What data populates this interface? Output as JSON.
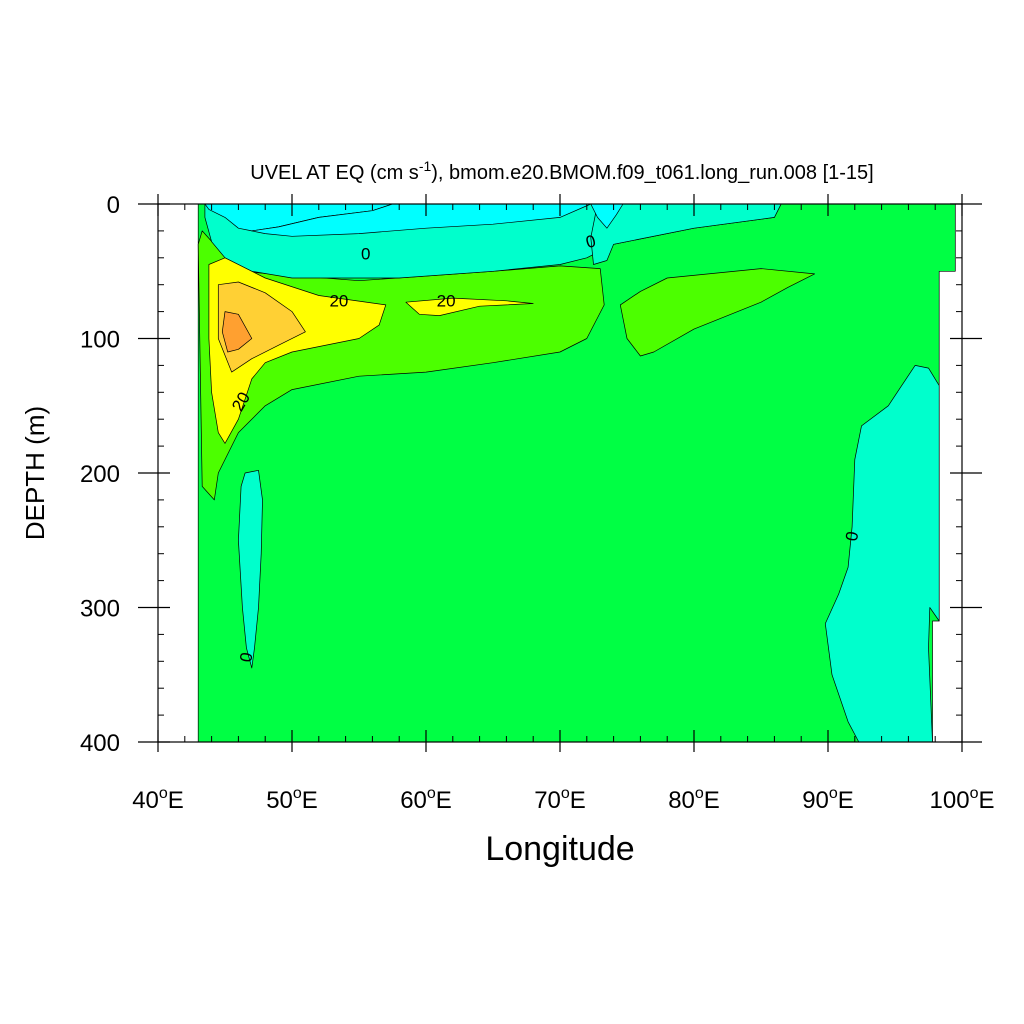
{
  "chart_data": {
    "type": "contour",
    "title_prefix": "UVEL AT EQ (cm s",
    "title_sup": "-1",
    "title_suffix": "), bmom.e20.BMOM.f09_t061.long_run.008 [1-15]",
    "xlabel": "Longitude",
    "ylabel": "DEPTH (m)",
    "xlim": [
      40,
      100
    ],
    "ylim": [
      0,
      400
    ],
    "y_reversed": true,
    "x_ticks": [
      {
        "value": 40,
        "num": "40",
        "sup": "o",
        "suffix": "E"
      },
      {
        "value": 50,
        "num": "50",
        "sup": "o",
        "suffix": "E"
      },
      {
        "value": 60,
        "num": "60",
        "sup": "o",
        "suffix": "E"
      },
      {
        "value": 70,
        "num": "70",
        "sup": "o",
        "suffix": "E"
      },
      {
        "value": 80,
        "num": "80",
        "sup": "o",
        "suffix": "E"
      },
      {
        "value": 90,
        "num": "90",
        "sup": "o",
        "suffix": "E"
      },
      {
        "value": 100,
        "num": "100",
        "sup": "o",
        "suffix": "E"
      }
    ],
    "x_minor_step": 2,
    "y_ticks": [
      0,
      100,
      200,
      300,
      400
    ],
    "y_minor_step": 20,
    "contour_interval": 10,
    "fill_levels": [
      {
        "range": [
          -20,
          -10
        ],
        "color": "#00ffff"
      },
      {
        "range": [
          -10,
          0
        ],
        "color": "#00ffcc"
      },
      {
        "range": [
          0,
          10
        ],
        "color": "#4cff00"
      },
      {
        "range": [
          10,
          20
        ],
        "color": "#00ff44"
      },
      {
        "range": [
          20,
          30
        ],
        "color": "#ffff00"
      },
      {
        "range": [
          30,
          40
        ],
        "color": "#ffd034"
      },
      {
        "range": [
          40,
          50
        ],
        "color": "#ffa030"
      }
    ],
    "regions": [
      {
        "name": "ocean-domain",
        "color": "#00ff44",
        "points": [
          [
            43,
            0
          ],
          [
            99.5,
            0
          ],
          [
            99.5,
            50
          ],
          [
            98.3,
            50
          ],
          [
            98.3,
            310
          ],
          [
            97.8,
            310
          ],
          [
            97.8,
            400
          ],
          [
            43,
            400
          ]
        ]
      },
      {
        "name": "west-deep-negative",
        "color": "#00ffcc",
        "points": [
          [
            46.5,
            200
          ],
          [
            47.5,
            198
          ],
          [
            47.8,
            220
          ],
          [
            47.7,
            260
          ],
          [
            47.5,
            300
          ],
          [
            47.2,
            330
          ],
          [
            47.0,
            345
          ],
          [
            46.6,
            330
          ],
          [
            46.3,
            300
          ],
          [
            46.0,
            250
          ],
          [
            46.2,
            210
          ]
        ]
      },
      {
        "name": "east-negative",
        "color": "#00ffcc",
        "points": [
          [
            97.8,
            400
          ],
          [
            97.5,
            330
          ],
          [
            97.6,
            300
          ],
          [
            98.3,
            310
          ],
          [
            98.3,
            135
          ],
          [
            97.5,
            122
          ],
          [
            96.5,
            120
          ],
          [
            95.5,
            135
          ],
          [
            94.5,
            150
          ],
          [
            92.5,
            165
          ],
          [
            92,
            190
          ],
          [
            91.8,
            240
          ],
          [
            91.5,
            270
          ],
          [
            90.8,
            290
          ],
          [
            89.8,
            312
          ],
          [
            90.3,
            350
          ],
          [
            91.5,
            385
          ],
          [
            92.3,
            400
          ]
        ]
      },
      {
        "name": "upper-positive",
        "color": "#4cff00",
        "points": [
          [
            43,
            30
          ],
          [
            43.3,
            20
          ],
          [
            46,
            50
          ],
          [
            55,
            57
          ],
          [
            65,
            50
          ],
          [
            70,
            46
          ],
          [
            73,
            48
          ],
          [
            73.3,
            75
          ],
          [
            72,
            100
          ],
          [
            70,
            110
          ],
          [
            65,
            118
          ],
          [
            60,
            125
          ],
          [
            55,
            128
          ],
          [
            50,
            138
          ],
          [
            48,
            150
          ],
          [
            46,
            170
          ],
          [
            44.5,
            200
          ],
          [
            44.2,
            220
          ],
          [
            43.3,
            210
          ]
        ]
      },
      {
        "name": "central-positive",
        "color": "#4cff00",
        "points": [
          [
            74.5,
            75
          ],
          [
            76,
            65
          ],
          [
            78,
            55
          ],
          [
            85,
            48
          ],
          [
            89,
            52
          ],
          [
            87,
            62
          ],
          [
            85,
            73
          ],
          [
            80,
            93
          ],
          [
            77,
            110
          ],
          [
            76,
            113
          ],
          [
            75,
            100
          ]
        ]
      },
      {
        "name": "surface-negative-west",
        "color": "#00ffcc",
        "points": [
          [
            43.5,
            0
          ],
          [
            86.5,
            0
          ],
          [
            86,
            10
          ],
          [
            80,
            18
          ],
          [
            74,
            30
          ],
          [
            72,
            40
          ],
          [
            70,
            45
          ],
          [
            65,
            50
          ],
          [
            58,
            55
          ],
          [
            50,
            55
          ],
          [
            47,
            50
          ],
          [
            45,
            40
          ],
          [
            44,
            28
          ],
          [
            43.5,
            10
          ]
        ]
      },
      {
        "name": "surface-negative-east",
        "color": "#00ffcc",
        "points": [
          [
            72.8,
            0
          ],
          [
            86.5,
            0
          ],
          [
            86,
            10
          ],
          [
            80,
            18
          ],
          [
            74,
            30
          ],
          [
            73.5,
            42
          ],
          [
            72.5,
            45
          ],
          [
            72.3,
            25
          ]
        ]
      },
      {
        "name": "surface-core-west",
        "color": "#00ffff",
        "points": [
          [
            43.5,
            0
          ],
          [
            57.5,
            0
          ],
          [
            56,
            5
          ],
          [
            52,
            10
          ],
          [
            49,
            17
          ],
          [
            47,
            20
          ],
          [
            46,
            18
          ],
          [
            45,
            10
          ],
          [
            43.8,
            4
          ]
        ]
      },
      {
        "name": "surface-core-mid",
        "color": "#00ffff",
        "points": [
          [
            57.5,
            0
          ],
          [
            72.3,
            0
          ],
          [
            70,
            10
          ],
          [
            65,
            15
          ],
          [
            60,
            18
          ],
          [
            55,
            22
          ],
          [
            50,
            24
          ],
          [
            48,
            22
          ],
          [
            47,
            20
          ],
          [
            49,
            17
          ],
          [
            52,
            10
          ],
          [
            56,
            5
          ]
        ]
      },
      {
        "name": "surface-core-east",
        "color": "#00ffff",
        "points": [
          [
            72.3,
            0
          ],
          [
            74.7,
            0
          ],
          [
            74.2,
            8
          ],
          [
            73.5,
            18
          ],
          [
            72.8,
            10
          ]
        ]
      },
      {
        "name": "jet-20",
        "color": "#ffff00",
        "points": [
          [
            43.8,
            45
          ],
          [
            45,
            40
          ],
          [
            48,
            55
          ],
          [
            52,
            68
          ],
          [
            57,
            75
          ],
          [
            56.5,
            90
          ],
          [
            55,
            100
          ],
          [
            50,
            110
          ],
          [
            48,
            118
          ],
          [
            47,
            130
          ],
          [
            46,
            160
          ],
          [
            45,
            178
          ],
          [
            44.5,
            170
          ],
          [
            44,
            140
          ],
          [
            43.8,
            100
          ]
        ]
      },
      {
        "name": "jet-20-east",
        "color": "#ffff00",
        "points": [
          [
            58.5,
            73
          ],
          [
            62,
            70
          ],
          [
            66,
            72
          ],
          [
            68,
            74
          ],
          [
            64,
            76
          ],
          [
            61,
            83
          ],
          [
            59.5,
            82
          ]
        ]
      },
      {
        "name": "jet-30",
        "color": "#ffd034",
        "points": [
          [
            44.5,
            60
          ],
          [
            46,
            58
          ],
          [
            48,
            66
          ],
          [
            50,
            80
          ],
          [
            51,
            95
          ],
          [
            49,
            105
          ],
          [
            47,
            115
          ],
          [
            45.5,
            125
          ],
          [
            44.5,
            100
          ]
        ]
      },
      {
        "name": "jet-40",
        "color": "#ffa030",
        "points": [
          [
            45,
            80
          ],
          [
            46,
            82
          ],
          [
            47,
            100
          ],
          [
            46,
            108
          ],
          [
            45.2,
            110
          ],
          [
            44.8,
            95
          ]
        ]
      }
    ],
    "contour_labels": [
      {
        "text": "0",
        "x": 55.5,
        "y": 37,
        "rotate": 0
      },
      {
        "text": "0",
        "x": 72.3,
        "y": 28,
        "rotate": -15
      },
      {
        "text": "20",
        "x": 53.5,
        "y": 72,
        "rotate": 0
      },
      {
        "text": "20",
        "x": 61.5,
        "y": 72,
        "rotate": 0
      },
      {
        "text": "20",
        "x": 46.2,
        "y": 147,
        "rotate": -60
      },
      {
        "text": "0",
        "x": 91.8,
        "y": 247,
        "rotate": -80
      },
      {
        "text": "0",
        "x": 46.6,
        "y": 337,
        "rotate": -80
      }
    ],
    "legend": "none",
    "grid": false
  }
}
